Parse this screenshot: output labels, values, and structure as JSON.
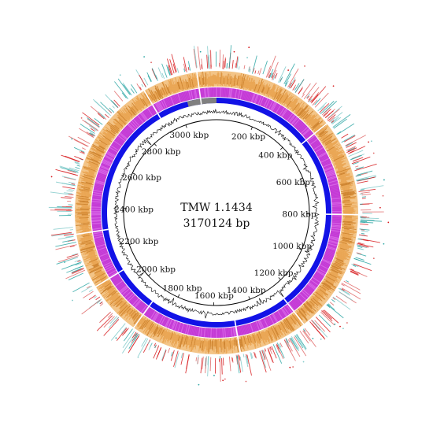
{
  "genome": {
    "name": "TMW 1.1434",
    "size_label": "3170124 bp",
    "length_bp": 3170124
  },
  "scale": {
    "unit": "kbp",
    "tick_labels": [
      "200 kbp",
      "400 kbp",
      "600 kbp",
      "800 kbp",
      "1000 kbp",
      "1200 kbp",
      "1400 kbp",
      "1600 kbp",
      "1800 kbp",
      "2000 kbp",
      "2200 kbp",
      "2400 kbp",
      "2600 kbp",
      "2800 kbp",
      "3000 kbp"
    ],
    "tick_values_kbp": [
      200,
      400,
      600,
      800,
      1000,
      1200,
      1400,
      1600,
      1800,
      2000,
      2200,
      2400,
      2600,
      2800,
      3000
    ]
  },
  "rings": [
    {
      "name": "outer-features",
      "colors": [
        "#e06666",
        "#d7191c",
        "#2ca6a4",
        "#7fc9c9"
      ]
    },
    {
      "name": "orange-ring",
      "color": "#e8a04a"
    },
    {
      "name": "purple-ring",
      "color": "#cc44dd"
    },
    {
      "name": "blue-ring",
      "color": "#1212e6",
      "gap_color": "#808080"
    },
    {
      "name": "gc-content",
      "color": "#000000"
    }
  ],
  "ring_breaks_kbp": [
    450,
    800,
    1250,
    1500,
    1900,
    2100,
    2300,
    2900,
    3100
  ],
  "blue_gap_kbp": [
    3040,
    3170
  ]
}
